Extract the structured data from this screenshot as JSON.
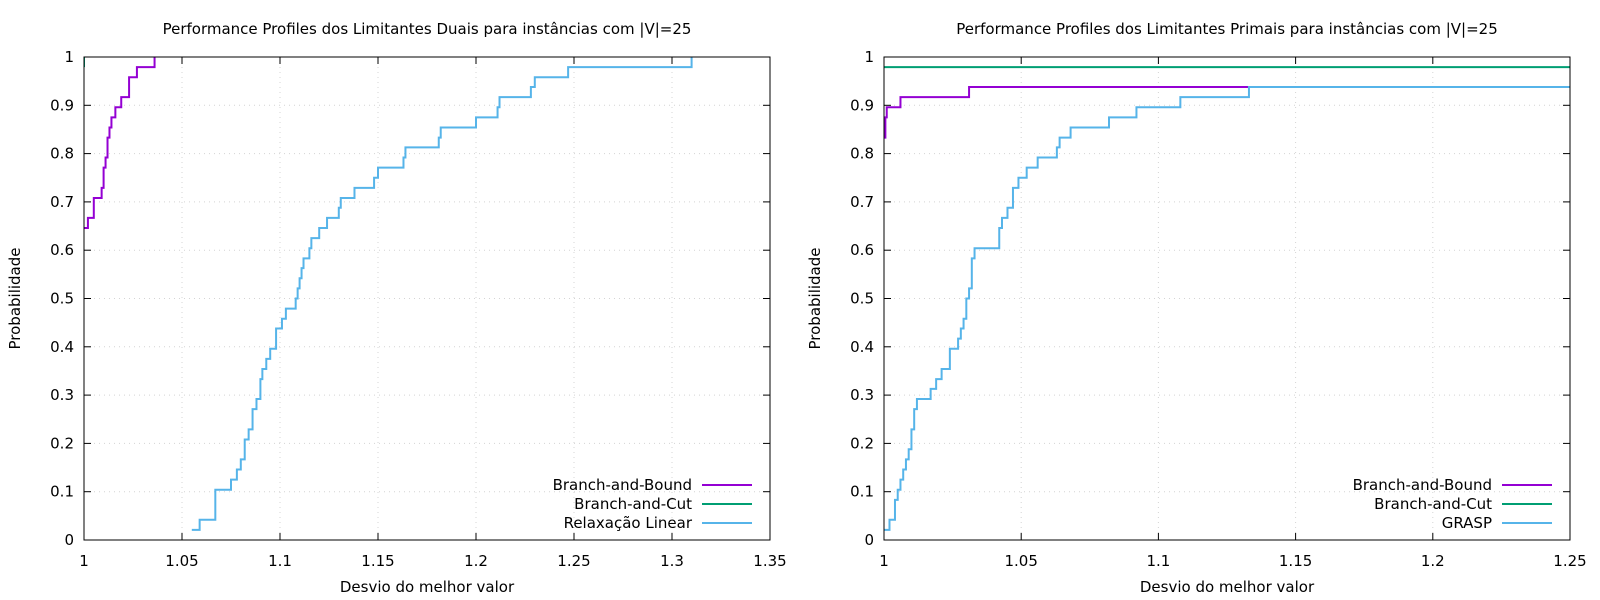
{
  "chart_data": [
    {
      "type": "line",
      "title": "Performance Profiles dos Limitantes Duais para instâncias com |V|=25",
      "xlabel": "Desvio do melhor valor",
      "ylabel": "Probabilidade",
      "xlim": [
        1,
        1.35
      ],
      "ylim": [
        0,
        1
      ],
      "xticks": [
        "1",
        "1.05",
        "1.1",
        "1.15",
        "1.2",
        "1.25",
        "1.3",
        "1.35"
      ],
      "xtick_values": [
        1,
        1.05,
        1.1,
        1.15,
        1.2,
        1.25,
        1.3,
        1.35
      ],
      "yticks": [
        "0",
        "0.1",
        "0.2",
        "0.3",
        "0.4",
        "0.5",
        "0.6",
        "0.7",
        "0.8",
        "0.9",
        "1"
      ],
      "ytick_values": [
        0,
        0.1,
        0.2,
        0.3,
        0.4,
        0.5,
        0.6,
        0.7,
        0.8,
        0.9,
        1
      ],
      "grid": true,
      "legend_position": "bottom-right",
      "series": [
        {
          "name": "Branch-and-Bound",
          "color": "#9400d3",
          "step": "post",
          "points": [
            [
              1.0,
              0.646
            ],
            [
              1.002,
              0.667
            ],
            [
              1.005,
              0.708
            ],
            [
              1.009,
              0.729
            ],
            [
              1.01,
              0.771
            ],
            [
              1.011,
              0.792
            ],
            [
              1.012,
              0.833
            ],
            [
              1.013,
              0.854
            ],
            [
              1.014,
              0.875
            ],
            [
              1.016,
              0.896
            ],
            [
              1.019,
              0.917
            ],
            [
              1.023,
              0.958
            ],
            [
              1.027,
              0.979
            ],
            [
              1.036,
              1.0
            ]
          ]
        },
        {
          "name": "Branch-and-Cut",
          "color": "#009e73",
          "step": "post",
          "points": [
            [
              1.0,
              0.979
            ],
            [
              1.0,
              1.0
            ]
          ]
        },
        {
          "name": "Relaxação Linear",
          "color": "#56b4e9",
          "step": "post",
          "points": [
            [
              1.055,
              0.021
            ],
            [
              1.059,
              0.042
            ],
            [
              1.067,
              0.104
            ],
            [
              1.075,
              0.125
            ],
            [
              1.078,
              0.146
            ],
            [
              1.08,
              0.167
            ],
            [
              1.082,
              0.208
            ],
            [
              1.084,
              0.229
            ],
            [
              1.086,
              0.271
            ],
            [
              1.088,
              0.292
            ],
            [
              1.09,
              0.333
            ],
            [
              1.091,
              0.354
            ],
            [
              1.093,
              0.375
            ],
            [
              1.095,
              0.396
            ],
            [
              1.098,
              0.438
            ],
            [
              1.101,
              0.458
            ],
            [
              1.103,
              0.479
            ],
            [
              1.108,
              0.5
            ],
            [
              1.109,
              0.521
            ],
            [
              1.11,
              0.542
            ],
            [
              1.111,
              0.563
            ],
            [
              1.112,
              0.583
            ],
            [
              1.115,
              0.604
            ],
            [
              1.116,
              0.625
            ],
            [
              1.12,
              0.646
            ],
            [
              1.124,
              0.667
            ],
            [
              1.13,
              0.688
            ],
            [
              1.131,
              0.708
            ],
            [
              1.138,
              0.729
            ],
            [
              1.148,
              0.75
            ],
            [
              1.15,
              0.771
            ],
            [
              1.163,
              0.792
            ],
            [
              1.164,
              0.813
            ],
            [
              1.181,
              0.833
            ],
            [
              1.182,
              0.854
            ],
            [
              1.2,
              0.875
            ],
            [
              1.211,
              0.896
            ],
            [
              1.212,
              0.917
            ],
            [
              1.228,
              0.938
            ],
            [
              1.23,
              0.958
            ],
            [
              1.247,
              0.979
            ],
            [
              1.31,
              1.0
            ]
          ]
        }
      ]
    },
    {
      "type": "line",
      "title": "Performance Profiles dos Limitantes Primais para instâncias com |V|=25",
      "xlabel": "Desvio do melhor valor",
      "ylabel": "Probabilidade",
      "xlim": [
        1,
        1.25
      ],
      "ylim": [
        0,
        1
      ],
      "xticks": [
        "1",
        "1.05",
        "1.1",
        "1.15",
        "1.2",
        "1.25"
      ],
      "xtick_values": [
        1,
        1.05,
        1.1,
        1.15,
        1.2,
        1.25
      ],
      "yticks": [
        "0",
        "0.1",
        "0.2",
        "0.3",
        "0.4",
        "0.5",
        "0.6",
        "0.7",
        "0.8",
        "0.9",
        "1"
      ],
      "ytick_values": [
        0,
        0.1,
        0.2,
        0.3,
        0.4,
        0.5,
        0.6,
        0.7,
        0.8,
        0.9,
        1
      ],
      "grid": true,
      "legend_position": "bottom-right",
      "series": [
        {
          "name": "Branch-and-Bound",
          "color": "#9400d3",
          "step": "post",
          "points": [
            [
              1.0,
              0.833
            ],
            [
              1.0005,
              0.875
            ],
            [
              1.001,
              0.896
            ],
            [
              1.006,
              0.917
            ],
            [
              1.031,
              0.938
            ],
            [
              1.25,
              0.938
            ]
          ]
        },
        {
          "name": "Branch-and-Cut",
          "color": "#009e73",
          "step": "post",
          "points": [
            [
              1.0,
              0.979
            ],
            [
              1.25,
              0.979
            ]
          ]
        },
        {
          "name": "GRASP",
          "color": "#56b4e9",
          "step": "post",
          "points": [
            [
              1.0,
              0.021
            ],
            [
              1.002,
              0.042
            ],
            [
              1.004,
              0.083
            ],
            [
              1.005,
              0.104
            ],
            [
              1.006,
              0.125
            ],
            [
              1.007,
              0.146
            ],
            [
              1.008,
              0.167
            ],
            [
              1.009,
              0.188
            ],
            [
              1.01,
              0.229
            ],
            [
              1.011,
              0.271
            ],
            [
              1.012,
              0.292
            ],
            [
              1.017,
              0.313
            ],
            [
              1.019,
              0.333
            ],
            [
              1.021,
              0.354
            ],
            [
              1.024,
              0.396
            ],
            [
              1.027,
              0.417
            ],
            [
              1.028,
              0.438
            ],
            [
              1.029,
              0.458
            ],
            [
              1.03,
              0.5
            ],
            [
              1.031,
              0.521
            ],
            [
              1.032,
              0.583
            ],
            [
              1.033,
              0.604
            ],
            [
              1.042,
              0.646
            ],
            [
              1.043,
              0.667
            ],
            [
              1.045,
              0.688
            ],
            [
              1.047,
              0.729
            ],
            [
              1.049,
              0.75
            ],
            [
              1.052,
              0.771
            ],
            [
              1.056,
              0.792
            ],
            [
              1.063,
              0.813
            ],
            [
              1.064,
              0.833
            ],
            [
              1.068,
              0.854
            ],
            [
              1.082,
              0.875
            ],
            [
              1.092,
              0.896
            ],
            [
              1.108,
              0.917
            ],
            [
              1.133,
              0.938
            ],
            [
              1.25,
              0.938
            ]
          ]
        }
      ]
    }
  ]
}
